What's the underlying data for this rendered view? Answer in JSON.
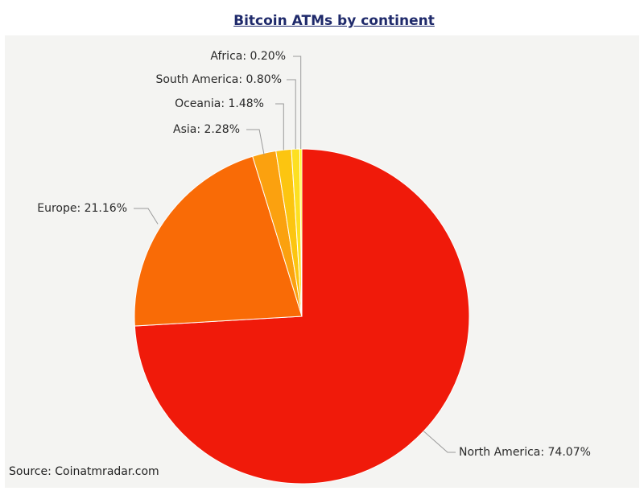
{
  "chart_data": {
    "type": "pie",
    "title": "Bitcoin ATMs by continent",
    "categories": [
      "North America",
      "Europe",
      "Asia",
      "Oceania",
      "South America",
      "Africa"
    ],
    "values": [
      74.07,
      21.16,
      2.28,
      1.48,
      0.8,
      0.2
    ],
    "unit": "%",
    "labels": [
      "North America: 74.07%",
      "Europe: 21.16%",
      "Asia: 2.28%",
      "Oceania: 1.48%",
      "South America: 0.80%",
      "Africa: 0.20%"
    ],
    "colors": [
      "#f01a0a",
      "#f96b06",
      "#fba10f",
      "#fcc510",
      "#fde021",
      "#fffa00"
    ],
    "source": "Source: Coinatmradar.com"
  }
}
